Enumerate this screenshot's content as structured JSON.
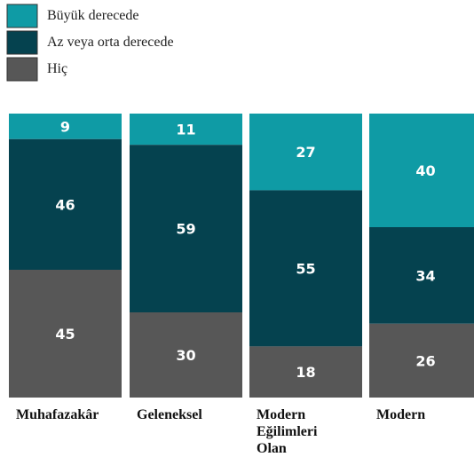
{
  "chart_data": {
    "type": "bar",
    "stacked": true,
    "percent": true,
    "title": "",
    "xlabel": "",
    "ylabel": "",
    "ylim": [
      0,
      100
    ],
    "grid": false,
    "legend_position": "top-left",
    "categories": [
      "Muhafazakâr",
      "Geleneksel",
      "Modern Eğilimleri Olan",
      "Modern"
    ],
    "category_lines": [
      [
        "Muhafazakâr"
      ],
      [
        "Geleneksel"
      ],
      [
        "Modern",
        "Eğilimleri",
        "Olan"
      ],
      [
        "Modern"
      ]
    ],
    "series": [
      {
        "name": "Büyük derecede",
        "color": "#0f9ba5",
        "values": [
          9,
          11,
          27,
          40
        ]
      },
      {
        "name": "Az veya orta derecede",
        "color": "#05424f",
        "values": [
          46,
          59,
          55,
          34
        ]
      },
      {
        "name": "Hiç",
        "color": "#575757",
        "values": [
          45,
          30,
          18,
          26
        ]
      }
    ]
  }
}
